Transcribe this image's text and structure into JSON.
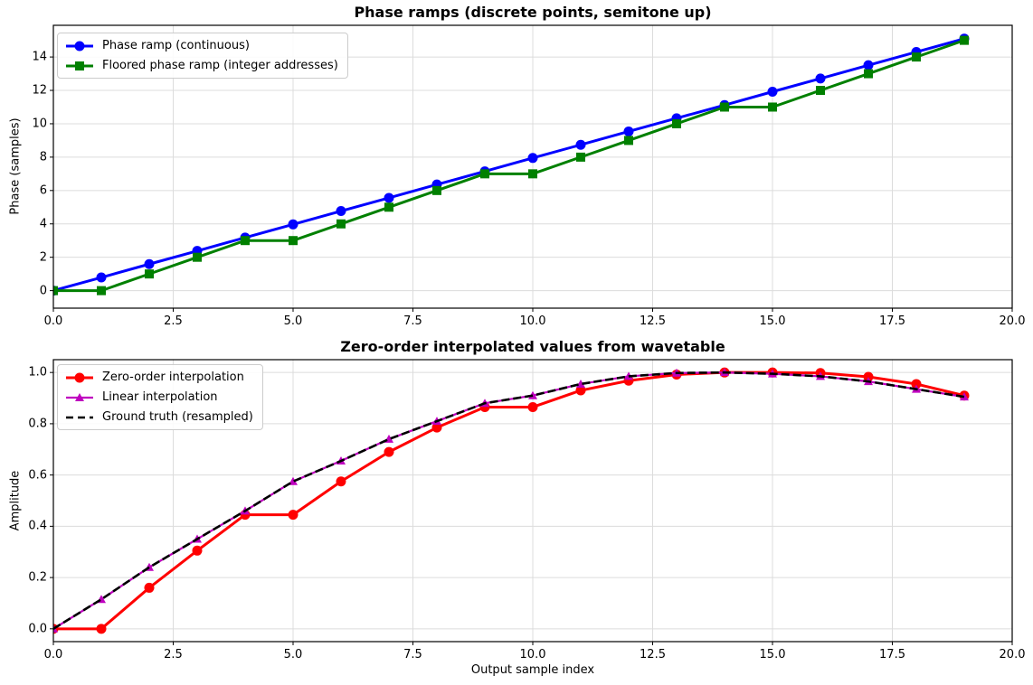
{
  "figure": {
    "background": "#ffffff"
  },
  "chart_data": [
    {
      "id": "phase-ramps",
      "type": "line",
      "title": "Phase ramps (discrete points, semitone up)",
      "xlabel": "",
      "ylabel": "Phase (samples)",
      "xlim": [
        0,
        20
      ],
      "ylim": [
        -1.05,
        15.9
      ],
      "grid": true,
      "legend_position": "upper left",
      "xtick_labels": [
        "0.0",
        "2.5",
        "5.0",
        "7.5",
        "10.0",
        "12.5",
        "15.0",
        "17.5",
        "20.0"
      ],
      "ytick_labels": [
        "0",
        "2",
        "4",
        "6",
        "8",
        "10",
        "12",
        "14"
      ],
      "x": [
        0,
        1,
        2,
        3,
        4,
        5,
        6,
        7,
        8,
        9,
        10,
        11,
        12,
        13,
        14,
        15,
        16,
        17,
        18,
        19
      ],
      "series": [
        {
          "name": "Phase ramp (continuous)",
          "color": "#0000ff",
          "marker": "circle",
          "line": "solid",
          "values": [
            0.0,
            0.79,
            1.59,
            2.38,
            3.18,
            3.97,
            4.77,
            5.56,
            6.36,
            7.15,
            7.95,
            8.74,
            9.54,
            10.33,
            11.12,
            11.92,
            12.71,
            13.51,
            14.3,
            15.1
          ]
        },
        {
          "name": "Floored phase ramp (integer addresses)",
          "color": "#008000",
          "marker": "square",
          "line": "solid",
          "values": [
            0,
            0,
            1,
            2,
            3,
            3,
            4,
            5,
            6,
            7,
            7,
            8,
            9,
            10,
            11,
            11,
            12,
            13,
            14,
            15
          ]
        }
      ]
    },
    {
      "id": "interp",
      "type": "line",
      "title": "Zero-order interpolated values from wavetable",
      "xlabel": "Output sample index",
      "ylabel": "Amplitude",
      "xlim": [
        0,
        20
      ],
      "ylim": [
        -0.05,
        1.05
      ],
      "grid": true,
      "legend_position": "upper left",
      "xtick_labels": [
        "0.0",
        "2.5",
        "5.0",
        "7.5",
        "10.0",
        "12.5",
        "15.0",
        "17.5",
        "20.0"
      ],
      "ytick_labels": [
        "0.0",
        "0.2",
        "0.4",
        "0.6",
        "0.8",
        "1.0"
      ],
      "x": [
        0,
        1,
        2,
        3,
        4,
        5,
        6,
        7,
        8,
        9,
        10,
        11,
        12,
        13,
        14,
        15,
        16,
        17,
        18,
        19
      ],
      "series": [
        {
          "name": "Zero-order interpolation",
          "color": "#ff0000",
          "marker": "circle",
          "line": "solid",
          "values": [
            0.0,
            0.0,
            0.16,
            0.305,
            0.445,
            0.445,
            0.575,
            0.69,
            0.785,
            0.865,
            0.865,
            0.93,
            0.968,
            0.992,
            1.0,
            1.0,
            0.998,
            0.983,
            0.955,
            0.91
          ]
        },
        {
          "name": "Linear interpolation",
          "color": "#bf00bf",
          "marker": "triangle",
          "line": "solid",
          "values": [
            0.0,
            0.115,
            0.24,
            0.35,
            0.46,
            0.575,
            0.655,
            0.74,
            0.81,
            0.88,
            0.91,
            0.955,
            0.985,
            0.998,
            1.0,
            0.995,
            0.985,
            0.965,
            0.935,
            0.905
          ]
        },
        {
          "name": "Ground truth (resampled)",
          "color": "#000000",
          "marker": "none",
          "line": "dashed",
          "values": [
            0.0,
            0.115,
            0.24,
            0.35,
            0.46,
            0.575,
            0.655,
            0.74,
            0.81,
            0.88,
            0.91,
            0.955,
            0.985,
            0.998,
            1.0,
            0.995,
            0.985,
            0.965,
            0.935,
            0.905
          ]
        }
      ]
    }
  ]
}
